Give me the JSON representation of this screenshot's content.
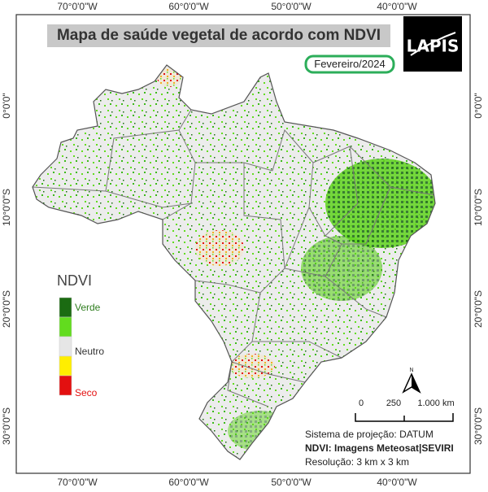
{
  "title": "Mapa de saúde vegetal de acordo com NDVI",
  "date": "Fevereiro/2024",
  "logo": "LAPIS",
  "longitudes": [
    "70°0'0\"W",
    "60°0'0\"W",
    "50°0'0\"W",
    "40°0'0\"W"
  ],
  "latitudes": [
    "0°0'0\"",
    "10°0'0\"S",
    "20°0'0\"S",
    "30°0'0\"S"
  ],
  "legend": {
    "title": "NDVI",
    "colors": [
      "#1b6b12",
      "#62dc1e",
      "#e6e6e6",
      "#ffee00",
      "#e31010"
    ],
    "labels": [
      "Verde",
      "Neutro",
      "Seco"
    ]
  },
  "north": "N",
  "scale": [
    "0",
    "250",
    "1.000 km"
  ],
  "info": [
    "Sistema de projeção: DATUM",
    "NDVI: Imagens Meteosat|SEVIRI",
    "Resolução: 3 km x 3 km"
  ]
}
